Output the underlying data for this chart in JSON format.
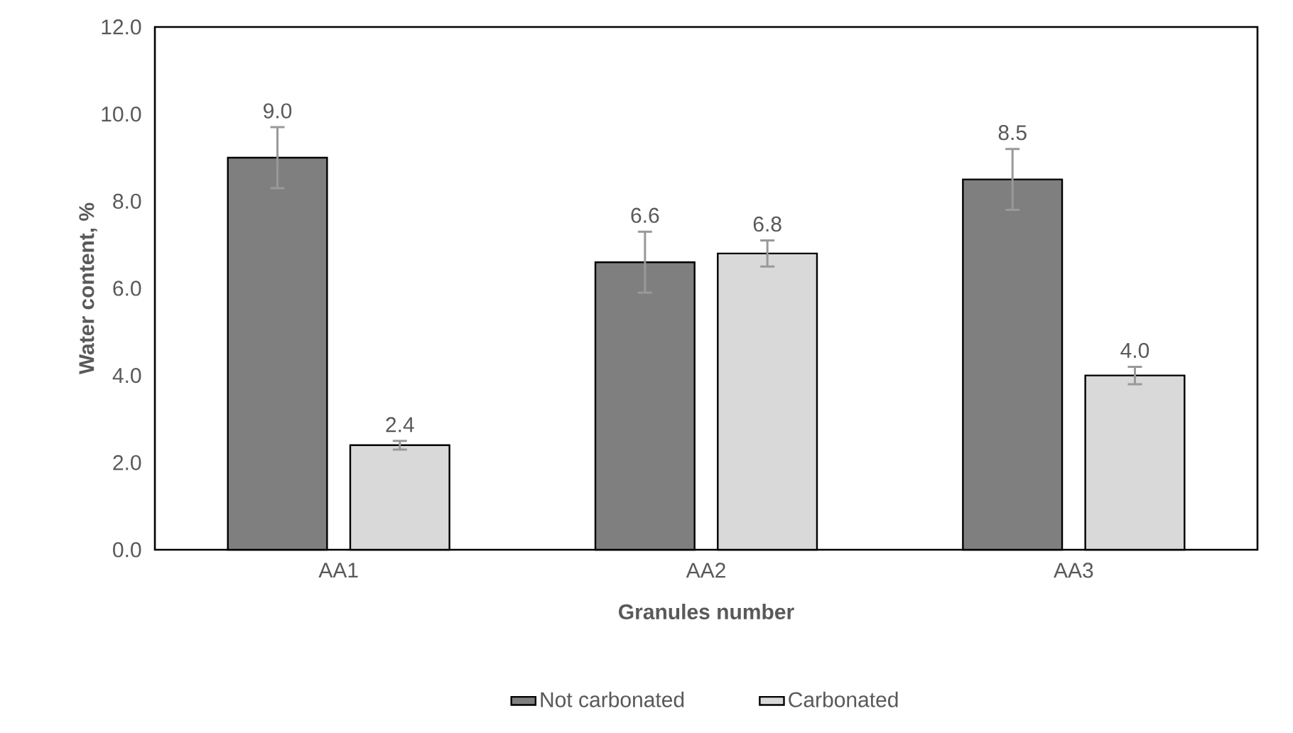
{
  "chart_data": {
    "type": "bar",
    "xlabel": "Granules number",
    "ylabel": "Water content, %",
    "categories": [
      "AA1",
      "AA2",
      "AA3"
    ],
    "series": [
      {
        "name": "Not carbonated",
        "color": "#7f7f7f",
        "values": [
          9.0,
          6.6,
          8.5
        ],
        "value_labels": [
          "9.0",
          "6.6",
          "8.5"
        ],
        "errors": [
          0.7,
          0.7,
          0.7
        ]
      },
      {
        "name": "Carbonated",
        "color": "#d9d9d9",
        "values": [
          2.4,
          6.8,
          4.0
        ],
        "value_labels": [
          "2.4",
          "6.8",
          "4.0"
        ],
        "errors": [
          0.1,
          0.3,
          0.2
        ]
      }
    ],
    "ylim": [
      0,
      12
    ],
    "yticks": [
      {
        "value": 0,
        "label": "0.0"
      },
      {
        "value": 2,
        "label": "2.0"
      },
      {
        "value": 4,
        "label": "4.0"
      },
      {
        "value": 6,
        "label": "6.0"
      },
      {
        "value": 8,
        "label": "8.0"
      },
      {
        "value": 10,
        "label": "10.0"
      },
      {
        "value": 12,
        "label": "12.0"
      }
    ],
    "grid": false,
    "legend": "bottom"
  }
}
